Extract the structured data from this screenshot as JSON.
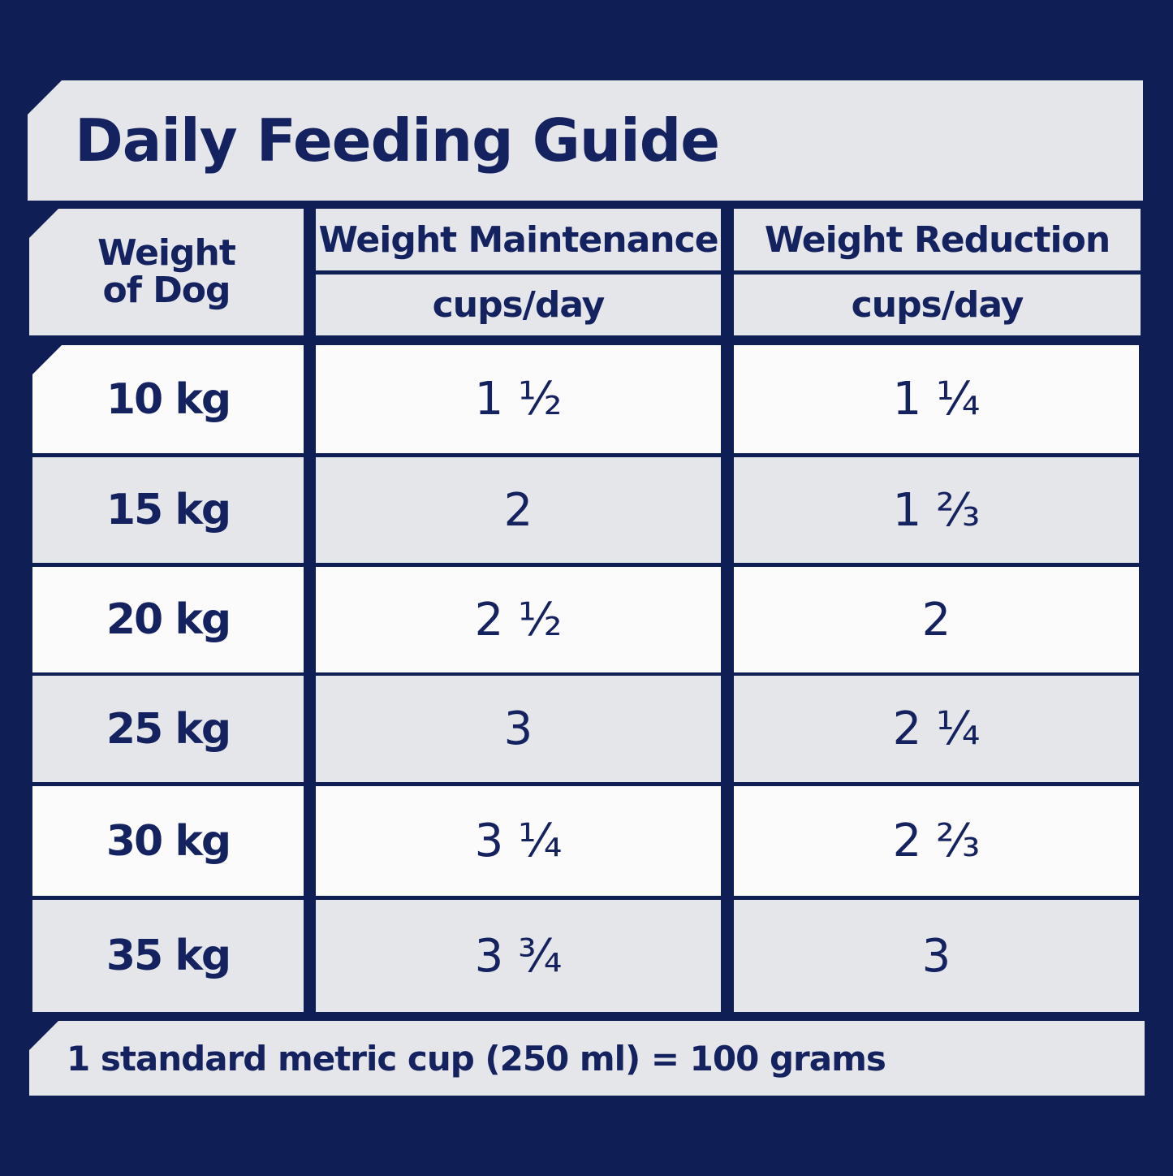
{
  "title": "Daily Feeding Guide",
  "header": {
    "weight_line1": "Weight",
    "weight_line2": "of Dog",
    "maintenance": "Weight Maintenance",
    "maintenance_unit": "cups/day",
    "reduction": "Weight Reduction",
    "reduction_unit": "cups/day"
  },
  "rows": [
    {
      "weight": "10 kg",
      "maintenance": "1 ½",
      "reduction": "1 ¼"
    },
    {
      "weight": "15 kg",
      "maintenance": "2",
      "reduction": "1 ⅔"
    },
    {
      "weight": "20 kg",
      "maintenance": "2 ½",
      "reduction": "2"
    },
    {
      "weight": "25 kg",
      "maintenance": "3",
      "reduction": "2 ¼"
    },
    {
      "weight": "30 kg",
      "maintenance": "3 ¼",
      "reduction": "2 ⅔"
    },
    {
      "weight": "35 kg",
      "maintenance": "3 ¾",
      "reduction": "3"
    }
  ],
  "footer": "1 standard metric cup (250 ml) = 100 grams",
  "colors": {
    "background": "#0f1f56",
    "panel_grey": "#e5e6e9",
    "panel_white": "#fbfbfc",
    "text": "#142260"
  }
}
